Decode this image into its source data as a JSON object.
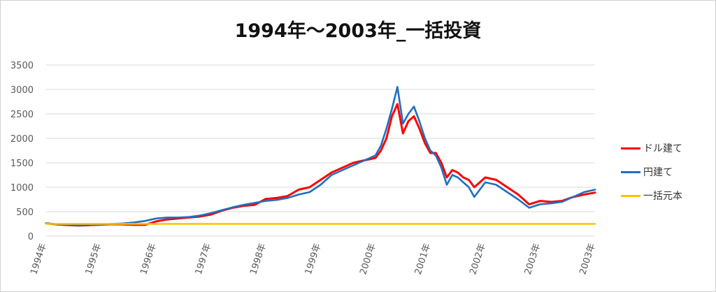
{
  "chart_data": {
    "type": "line",
    "title": "1994年～2003年_一括投資",
    "xlabel": "",
    "ylabel": "",
    "ylim": [
      0,
      3500
    ],
    "yticks": [
      0,
      500,
      1000,
      1500,
      2000,
      2500,
      3000,
      3500
    ],
    "x_tick_labels": [
      "1994年",
      "1995年",
      "1996年",
      "1997年",
      "1998年",
      "1999年",
      "2000年",
      "2001年",
      "2002年",
      "2003年",
      "2003年"
    ],
    "grid": "horizontal",
    "legend_position": "right",
    "colors": {
      "dollar": "#ff0000",
      "yen": "#1f6fbf",
      "principal": "#ffc000"
    },
    "series": [
      {
        "name": "ドル建て",
        "x": [
          1994.0,
          1994.2,
          1994.4,
          1994.6,
          1994.8,
          1995.0,
          1995.2,
          1995.4,
          1995.6,
          1995.8,
          1996.0,
          1996.2,
          1996.4,
          1996.6,
          1996.8,
          1997.0,
          1997.2,
          1997.4,
          1997.6,
          1997.8,
          1998.0,
          1998.2,
          1998.4,
          1998.6,
          1998.8,
          1999.0,
          1999.2,
          1999.4,
          1999.6,
          1999.8,
          2000.0,
          2000.1,
          2000.2,
          2000.3,
          2000.4,
          2000.5,
          2000.6,
          2000.7,
          2000.8,
          2000.9,
          2001.0,
          2001.1,
          2001.2,
          2001.3,
          2001.4,
          2001.5,
          2001.6,
          2001.7,
          2001.8,
          2001.9,
          2002.0,
          2002.2,
          2002.4,
          2002.6,
          2002.8,
          2003.0,
          2003.2,
          2003.4,
          2003.6,
          2003.8,
          2004.0
        ],
        "values": [
          260,
          240,
          225,
          215,
          225,
          235,
          245,
          240,
          230,
          230,
          300,
          340,
          360,
          380,
          400,
          440,
          520,
          580,
          620,
          640,
          760,
          780,
          820,
          950,
          1000,
          1150,
          1300,
          1400,
          1500,
          1550,
          1600,
          1750,
          2000,
          2450,
          2700,
          2100,
          2350,
          2450,
          2200,
          1900,
          1700,
          1700,
          1500,
          1200,
          1350,
          1300,
          1200,
          1150,
          1000,
          1100,
          1200,
          1150,
          1000,
          850,
          650,
          720,
          700,
          720,
          800,
          850,
          890
        ]
      },
      {
        "name": "円建て",
        "x": [
          1994.0,
          1994.2,
          1994.4,
          1994.6,
          1994.8,
          1995.0,
          1995.2,
          1995.4,
          1995.6,
          1995.8,
          1996.0,
          1996.2,
          1996.4,
          1996.6,
          1996.8,
          1997.0,
          1997.2,
          1997.4,
          1997.6,
          1997.8,
          1998.0,
          1998.2,
          1998.4,
          1998.6,
          1998.8,
          1999.0,
          1999.2,
          1999.4,
          1999.6,
          1999.8,
          2000.0,
          2000.1,
          2000.2,
          2000.3,
          2000.4,
          2000.5,
          2000.6,
          2000.7,
          2000.8,
          2000.9,
          2001.0,
          2001.1,
          2001.2,
          2001.3,
          2001.4,
          2001.5,
          2001.6,
          2001.7,
          2001.8,
          2001.9,
          2002.0,
          2002.2,
          2002.4,
          2002.6,
          2002.8,
          2003.0,
          2003.2,
          2003.4,
          2003.6,
          2003.8,
          2004.0
        ],
        "values": [
          260,
          245,
          230,
          220,
          230,
          240,
          250,
          260,
          280,
          310,
          360,
          380,
          380,
          390,
          420,
          470,
          530,
          590,
          640,
          680,
          720,
          740,
          780,
          850,
          900,
          1050,
          1250,
          1350,
          1450,
          1550,
          1650,
          1850,
          2200,
          2600,
          3050,
          2300,
          2500,
          2650,
          2350,
          2000,
          1750,
          1650,
          1400,
          1050,
          1250,
          1200,
          1100,
          1000,
          800,
          950,
          1100,
          1050,
          900,
          750,
          580,
          650,
          670,
          700,
          800,
          900,
          950
        ]
      },
      {
        "name": "一括元本",
        "x": [
          1994.0,
          2004.0
        ],
        "values": [
          250,
          250
        ]
      }
    ]
  }
}
